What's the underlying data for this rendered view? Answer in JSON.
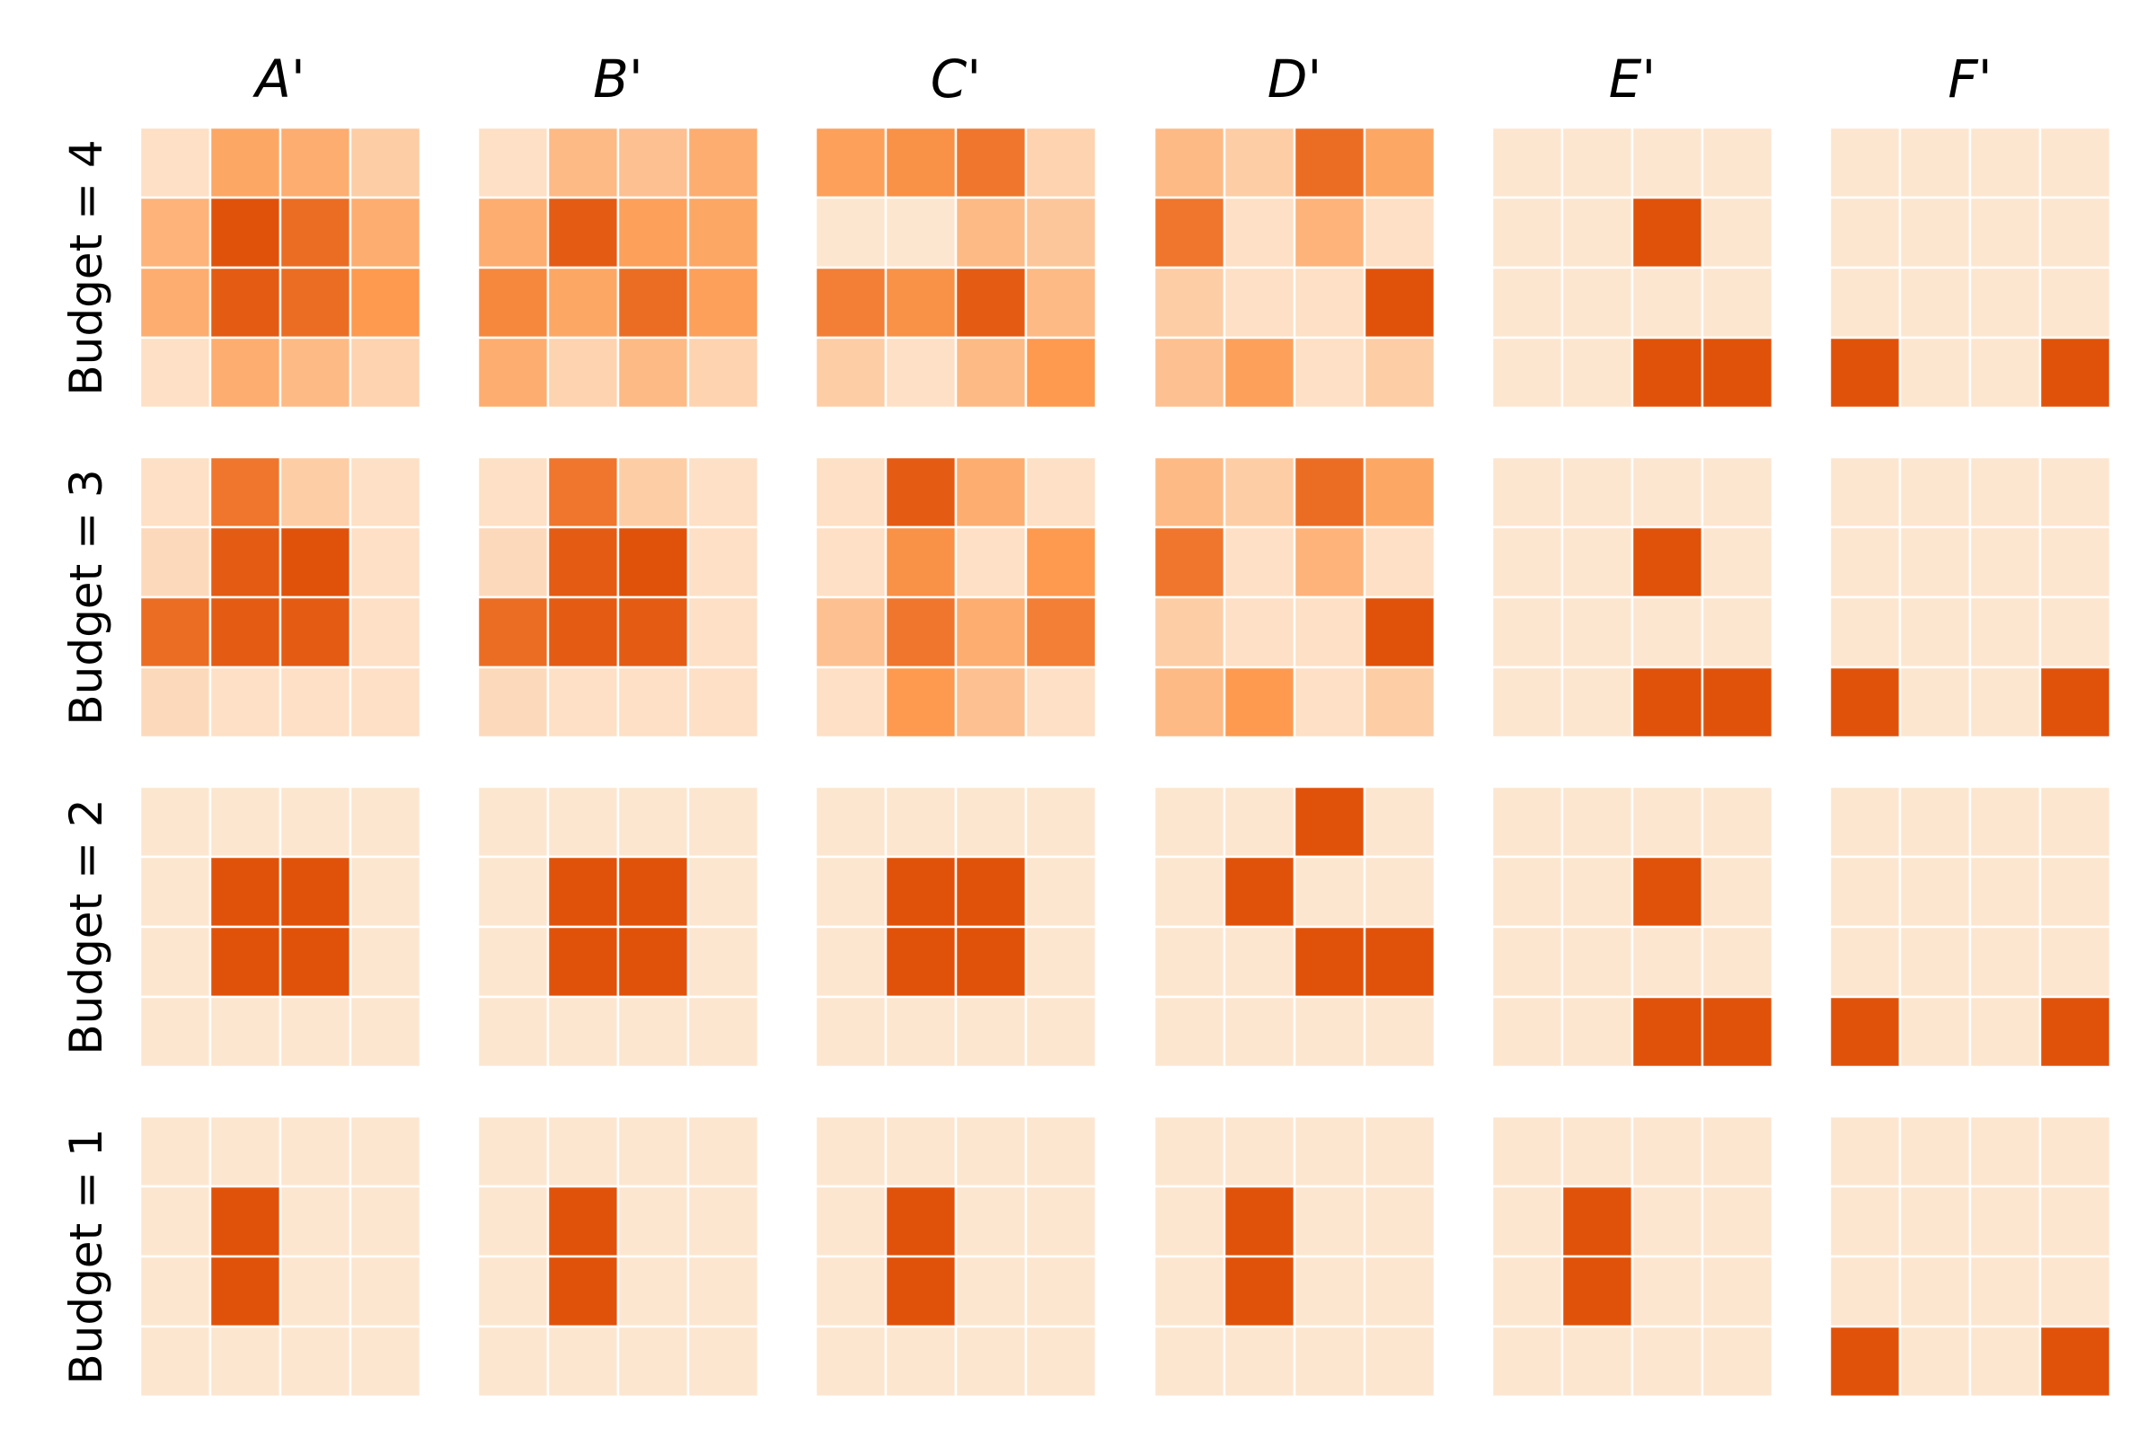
{
  "chart_data": {
    "type": "heatmap",
    "columns": [
      "A'",
      "B'",
      "C'",
      "D'",
      "E'",
      "F'"
    ],
    "rows": [
      "Budget = 4",
      "Budget = 3",
      "Budget = 2",
      "Budget = 1"
    ],
    "colors": {
      "low": "#fde6d0",
      "mid": "#fd9a4f",
      "high": "#e0520a",
      "grid_line": "#ffffff"
    },
    "grid_size": [
      4,
      4
    ],
    "grids": [
      [
        [
          [
            0.05,
            0.5,
            0.45,
            0.2
          ],
          [
            0.4,
            1,
            0.85,
            0.45
          ],
          [
            0.45,
            0.95,
            0.85,
            0.6
          ],
          [
            0.05,
            0.45,
            0.35,
            0.15
          ]
        ],
        [
          [
            0.05,
            0.35,
            0.3,
            0.45
          ],
          [
            0.45,
            0.95,
            0.55,
            0.5
          ],
          [
            0.7,
            0.5,
            0.85,
            0.55
          ],
          [
            0.45,
            0.15,
            0.35,
            0.15
          ]
        ],
        [
          [
            0.55,
            0.65,
            0.8,
            0.15
          ],
          [
            0,
            0,
            0.35,
            0.25
          ],
          [
            0.75,
            0.65,
            0.95,
            0.35
          ],
          [
            0.2,
            0.05,
            0.35,
            0.6
          ]
        ],
        [
          [
            0.35,
            0.2,
            0.85,
            0.5
          ],
          [
            0.8,
            0.05,
            0.4,
            0.05
          ],
          [
            0.2,
            0.05,
            0.05,
            1
          ],
          [
            0.3,
            0.55,
            0.05,
            0.2
          ]
        ],
        [
          [
            0,
            0,
            0,
            0
          ],
          [
            0,
            0,
            1,
            0
          ],
          [
            0,
            0,
            0,
            0
          ],
          [
            0,
            0,
            1,
            1
          ]
        ],
        [
          [
            0,
            0,
            0,
            0
          ],
          [
            0,
            0,
            0,
            0
          ],
          [
            0,
            0,
            0,
            0
          ],
          [
            1,
            0,
            0,
            1
          ]
        ]
      ],
      [
        [
          [
            0.05,
            0.8,
            0.2,
            0.05
          ],
          [
            0.1,
            0.95,
            1,
            0.05
          ],
          [
            0.85,
            0.95,
            0.95,
            0.05
          ],
          [
            0.1,
            0.05,
            0.05,
            0.05
          ]
        ],
        [
          [
            0.05,
            0.8,
            0.2,
            0.05
          ],
          [
            0.1,
            0.95,
            1,
            0.05
          ],
          [
            0.85,
            0.95,
            0.95,
            0.05
          ],
          [
            0.1,
            0.05,
            0.05,
            0.05
          ]
        ],
        [
          [
            0.05,
            0.95,
            0.45,
            0.05
          ],
          [
            0.05,
            0.65,
            0.05,
            0.6
          ],
          [
            0.3,
            0.8,
            0.45,
            0.75
          ],
          [
            0.05,
            0.6,
            0.3,
            0.05
          ]
        ],
        [
          [
            0.35,
            0.2,
            0.85,
            0.5
          ],
          [
            0.8,
            0.05,
            0.4,
            0.05
          ],
          [
            0.2,
            0.05,
            0.05,
            1
          ],
          [
            0.35,
            0.6,
            0.05,
            0.2
          ]
        ],
        [
          [
            0,
            0,
            0,
            0
          ],
          [
            0,
            0,
            1,
            0
          ],
          [
            0,
            0,
            0,
            0
          ],
          [
            0,
            0,
            1,
            1
          ]
        ],
        [
          [
            0,
            0,
            0,
            0
          ],
          [
            0,
            0,
            0,
            0
          ],
          [
            0,
            0,
            0,
            0
          ],
          [
            1,
            0,
            0,
            1
          ]
        ]
      ],
      [
        [
          [
            0,
            0,
            0,
            0
          ],
          [
            0,
            1,
            1,
            0
          ],
          [
            0,
            1,
            1,
            0
          ],
          [
            0,
            0,
            0,
            0
          ]
        ],
        [
          [
            0,
            0,
            0,
            0
          ],
          [
            0,
            1,
            1,
            0
          ],
          [
            0,
            1,
            1,
            0
          ],
          [
            0,
            0,
            0,
            0
          ]
        ],
        [
          [
            0,
            0,
            0,
            0
          ],
          [
            0,
            1,
            1,
            0
          ],
          [
            0,
            1,
            1,
            0
          ],
          [
            0,
            0,
            0,
            0
          ]
        ],
        [
          [
            0,
            0,
            1,
            0
          ],
          [
            0,
            1,
            0,
            0
          ],
          [
            0,
            0,
            1,
            1
          ],
          [
            0,
            0,
            0,
            0
          ]
        ],
        [
          [
            0,
            0,
            0,
            0
          ],
          [
            0,
            0,
            1,
            0
          ],
          [
            0,
            0,
            0,
            0
          ],
          [
            0,
            0,
            1,
            1
          ]
        ],
        [
          [
            0,
            0,
            0,
            0
          ],
          [
            0,
            0,
            0,
            0
          ],
          [
            0,
            0,
            0,
            0
          ],
          [
            1,
            0,
            0,
            1
          ]
        ]
      ],
      [
        [
          [
            0,
            0,
            0,
            0
          ],
          [
            0,
            1,
            0,
            0
          ],
          [
            0,
            1,
            0,
            0
          ],
          [
            0,
            0,
            0,
            0
          ]
        ],
        [
          [
            0,
            0,
            0,
            0
          ],
          [
            0,
            1,
            0,
            0
          ],
          [
            0,
            1,
            0,
            0
          ],
          [
            0,
            0,
            0,
            0
          ]
        ],
        [
          [
            0,
            0,
            0,
            0
          ],
          [
            0,
            1,
            0,
            0
          ],
          [
            0,
            1,
            0,
            0
          ],
          [
            0,
            0,
            0,
            0
          ]
        ],
        [
          [
            0,
            0,
            0,
            0
          ],
          [
            0,
            1,
            0,
            0
          ],
          [
            0,
            1,
            0,
            0
          ],
          [
            0,
            0,
            0,
            0
          ]
        ],
        [
          [
            0,
            0,
            0,
            0
          ],
          [
            0,
            1,
            0,
            0
          ],
          [
            0,
            1,
            0,
            0
          ],
          [
            0,
            0,
            0,
            0
          ]
        ],
        [
          [
            0,
            0,
            0,
            0
          ],
          [
            0,
            0,
            0,
            0
          ],
          [
            0,
            0,
            0,
            0
          ],
          [
            1,
            0,
            0,
            1
          ]
        ]
      ]
    ]
  }
}
